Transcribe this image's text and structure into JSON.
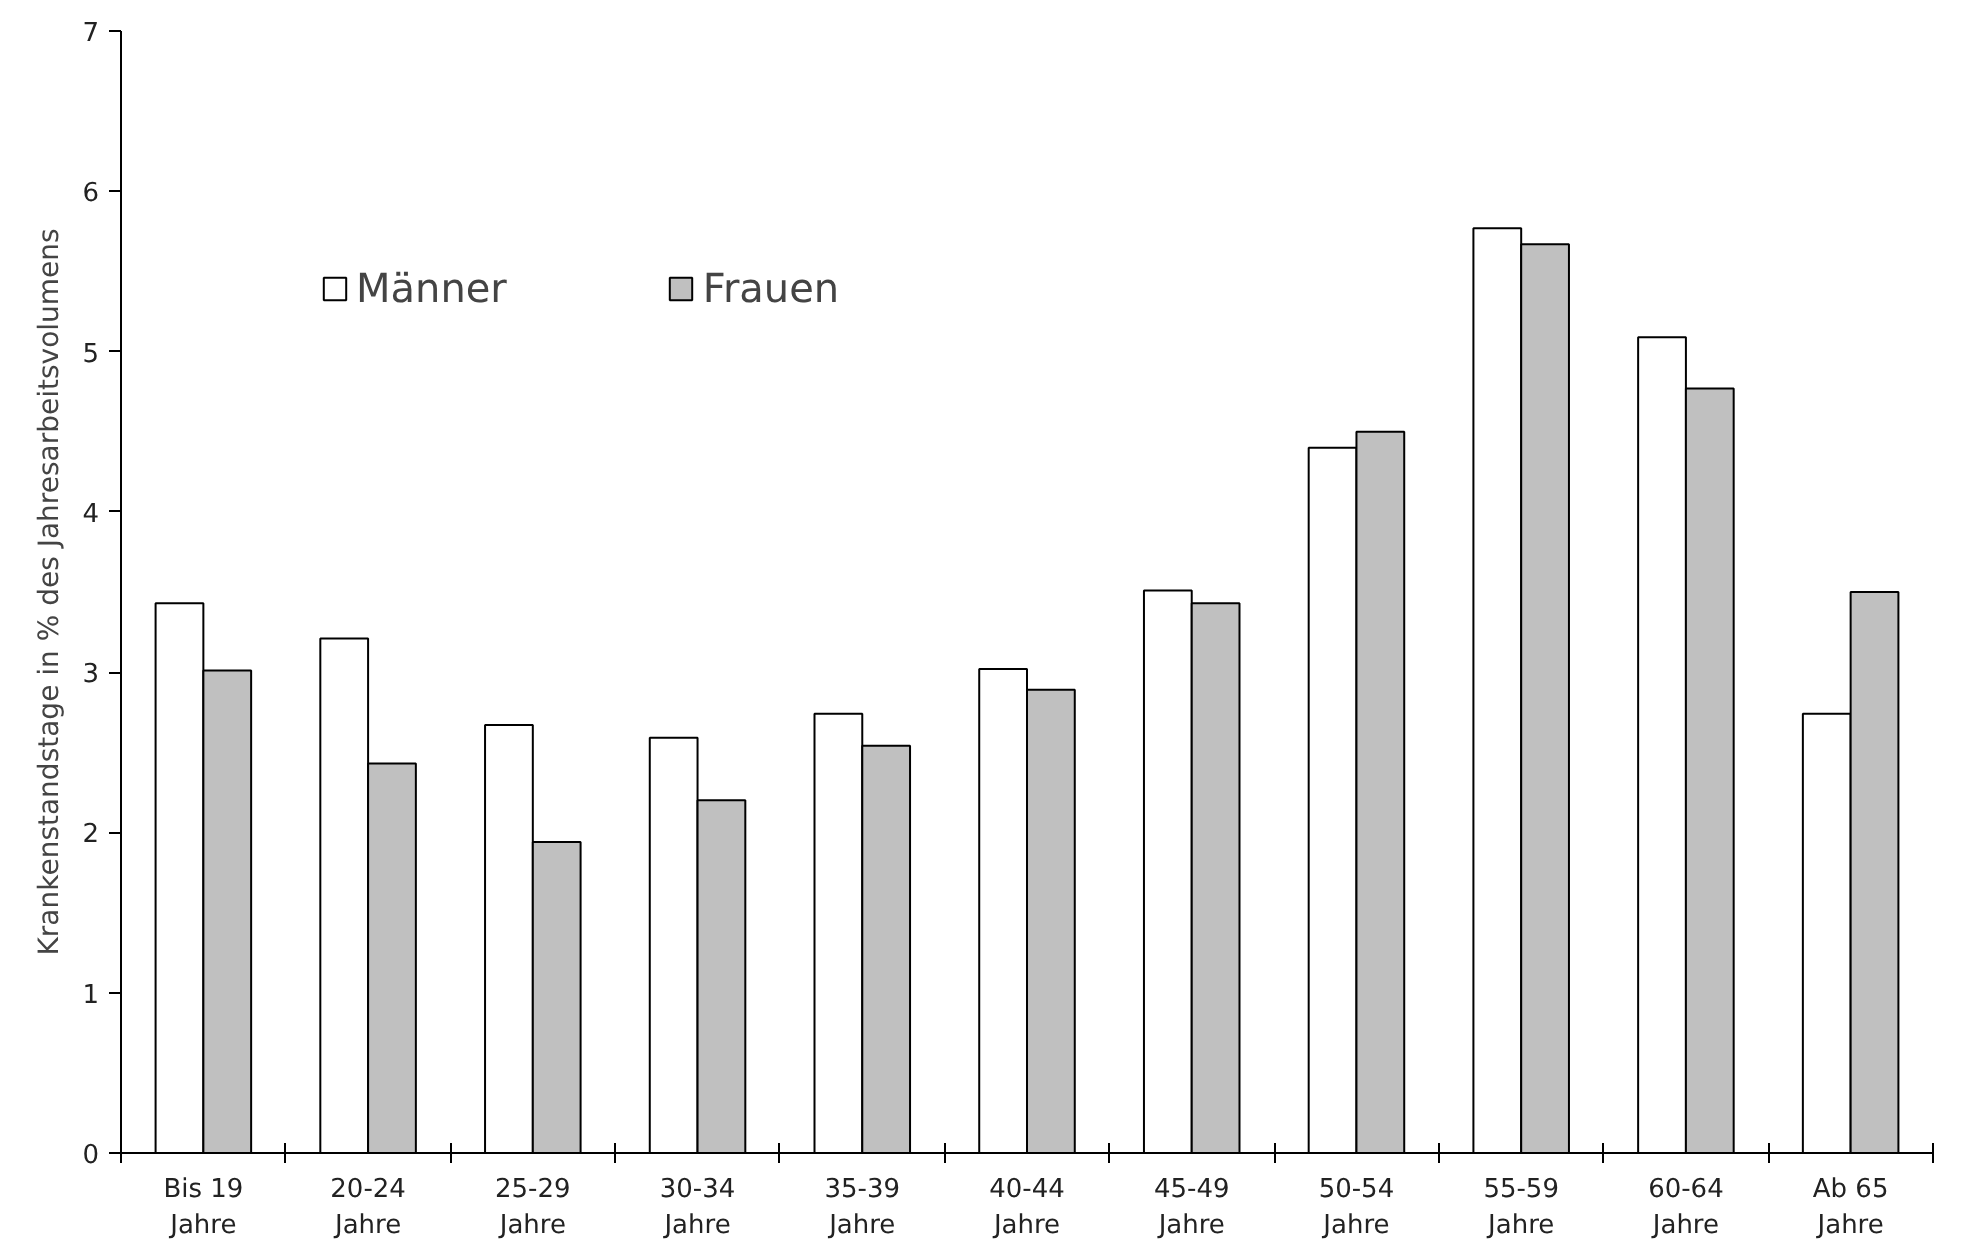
{
  "chart_data": {
    "type": "bar",
    "ylabel": "Krankenstandstage in % des Jahresarbeitsvolumens",
    "categories": [
      "Bis 19\nJahre",
      "20-24\nJahre",
      "25-29\nJahre",
      "30-34\nJahre",
      "35-39\nJahre",
      "40-44\nJahre",
      "45-49\nJahre",
      "50-54\nJahre",
      "55-59\nJahre",
      "60-64\nJahre",
      "Ab 65\nJahre"
    ],
    "series": [
      {
        "name": "Männer",
        "color": "#ffffff",
        "values": [
          3.43,
          3.21,
          2.67,
          2.59,
          2.74,
          3.02,
          3.51,
          4.4,
          5.77,
          5.09,
          2.74
        ]
      },
      {
        "name": "Frauen",
        "color": "#c0c0c0",
        "values": [
          3.01,
          2.43,
          1.94,
          2.2,
          2.54,
          2.89,
          3.43,
          4.5,
          5.67,
          4.77,
          3.5
        ]
      }
    ],
    "ylim": [
      0,
      7
    ],
    "yticks": [
      0,
      1,
      2,
      3,
      4,
      5,
      6,
      7
    ],
    "grid": false,
    "legend": "top left"
  }
}
